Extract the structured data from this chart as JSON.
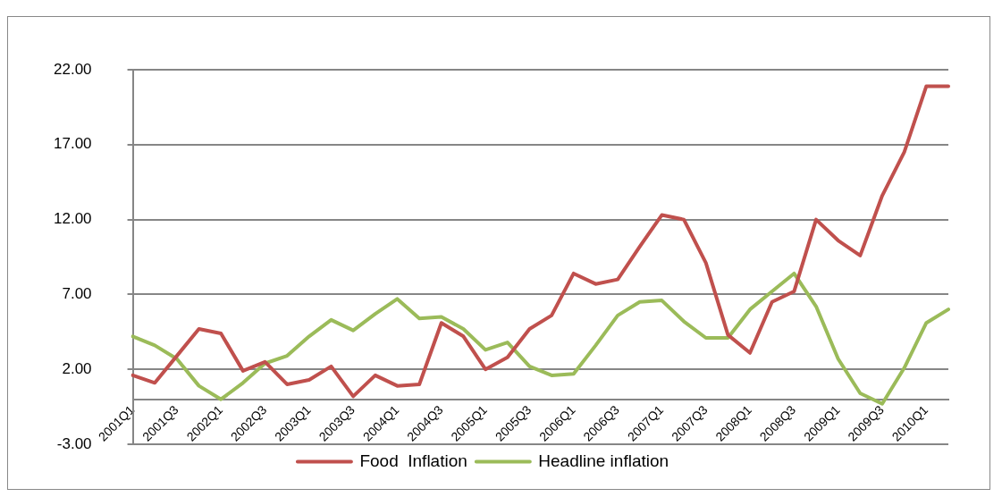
{
  "chart_data": {
    "type": "line",
    "categories": [
      "2001Q1",
      null,
      "2001Q3",
      null,
      "2002Q1",
      null,
      "2002Q3",
      null,
      "2003Q1",
      null,
      "2003Q3",
      null,
      "2004Q1",
      null,
      "2004Q3",
      null,
      "2005Q1",
      null,
      "2005Q3",
      null,
      "2006Q1",
      null,
      "2006Q3",
      null,
      "2007Q1",
      null,
      "2007Q3",
      null,
      "2008Q1",
      null,
      "2008Q3",
      null,
      "2009Q1",
      null,
      "2009Q3",
      null,
      "2010Q1",
      null
    ],
    "series": [
      {
        "name": "Food  Inflation",
        "color": "#c0504d",
        "values": [
          1.6,
          1.1,
          2.9,
          4.7,
          4.4,
          1.9,
          2.5,
          1.0,
          1.3,
          2.2,
          0.2,
          1.6,
          0.9,
          1.0,
          5.1,
          4.2,
          2.0,
          2.8,
          4.7,
          5.6,
          8.4,
          7.7,
          8.0,
          10.2,
          12.3,
          12.0,
          9.1,
          4.3,
          3.1,
          6.5,
          7.2,
          12.0,
          10.6,
          9.6,
          13.6,
          16.5,
          20.9,
          20.9
        ]
      },
      {
        "name": "Headline inflation",
        "color": "#9bbb59",
        "values": [
          4.2,
          3.6,
          2.7,
          0.9,
          0.0,
          1.1,
          2.4,
          2.9,
          4.2,
          5.3,
          4.6,
          5.7,
          6.7,
          5.4,
          5.5,
          4.7,
          3.3,
          3.8,
          2.2,
          1.6,
          1.7,
          3.6,
          5.6,
          6.5,
          6.6,
          5.2,
          4.1,
          4.1,
          6.0,
          7.2,
          8.4,
          6.2,
          2.7,
          0.4,
          -0.3,
          2.1,
          5.1,
          6.0
        ]
      }
    ],
    "ylim": [
      -3,
      22
    ],
    "yticks": [
      {
        "value": -3,
        "label": "-3.00"
      },
      {
        "value": 2,
        "label": "2.00"
      },
      {
        "value": 7,
        "label": "7.00"
      },
      {
        "value": 12,
        "label": "12.00"
      },
      {
        "value": 17,
        "label": "17.00"
      },
      {
        "value": 22,
        "label": "22.00"
      }
    ],
    "grid": "y",
    "legend": "bottom",
    "marker": "none",
    "line_style": "solid"
  }
}
